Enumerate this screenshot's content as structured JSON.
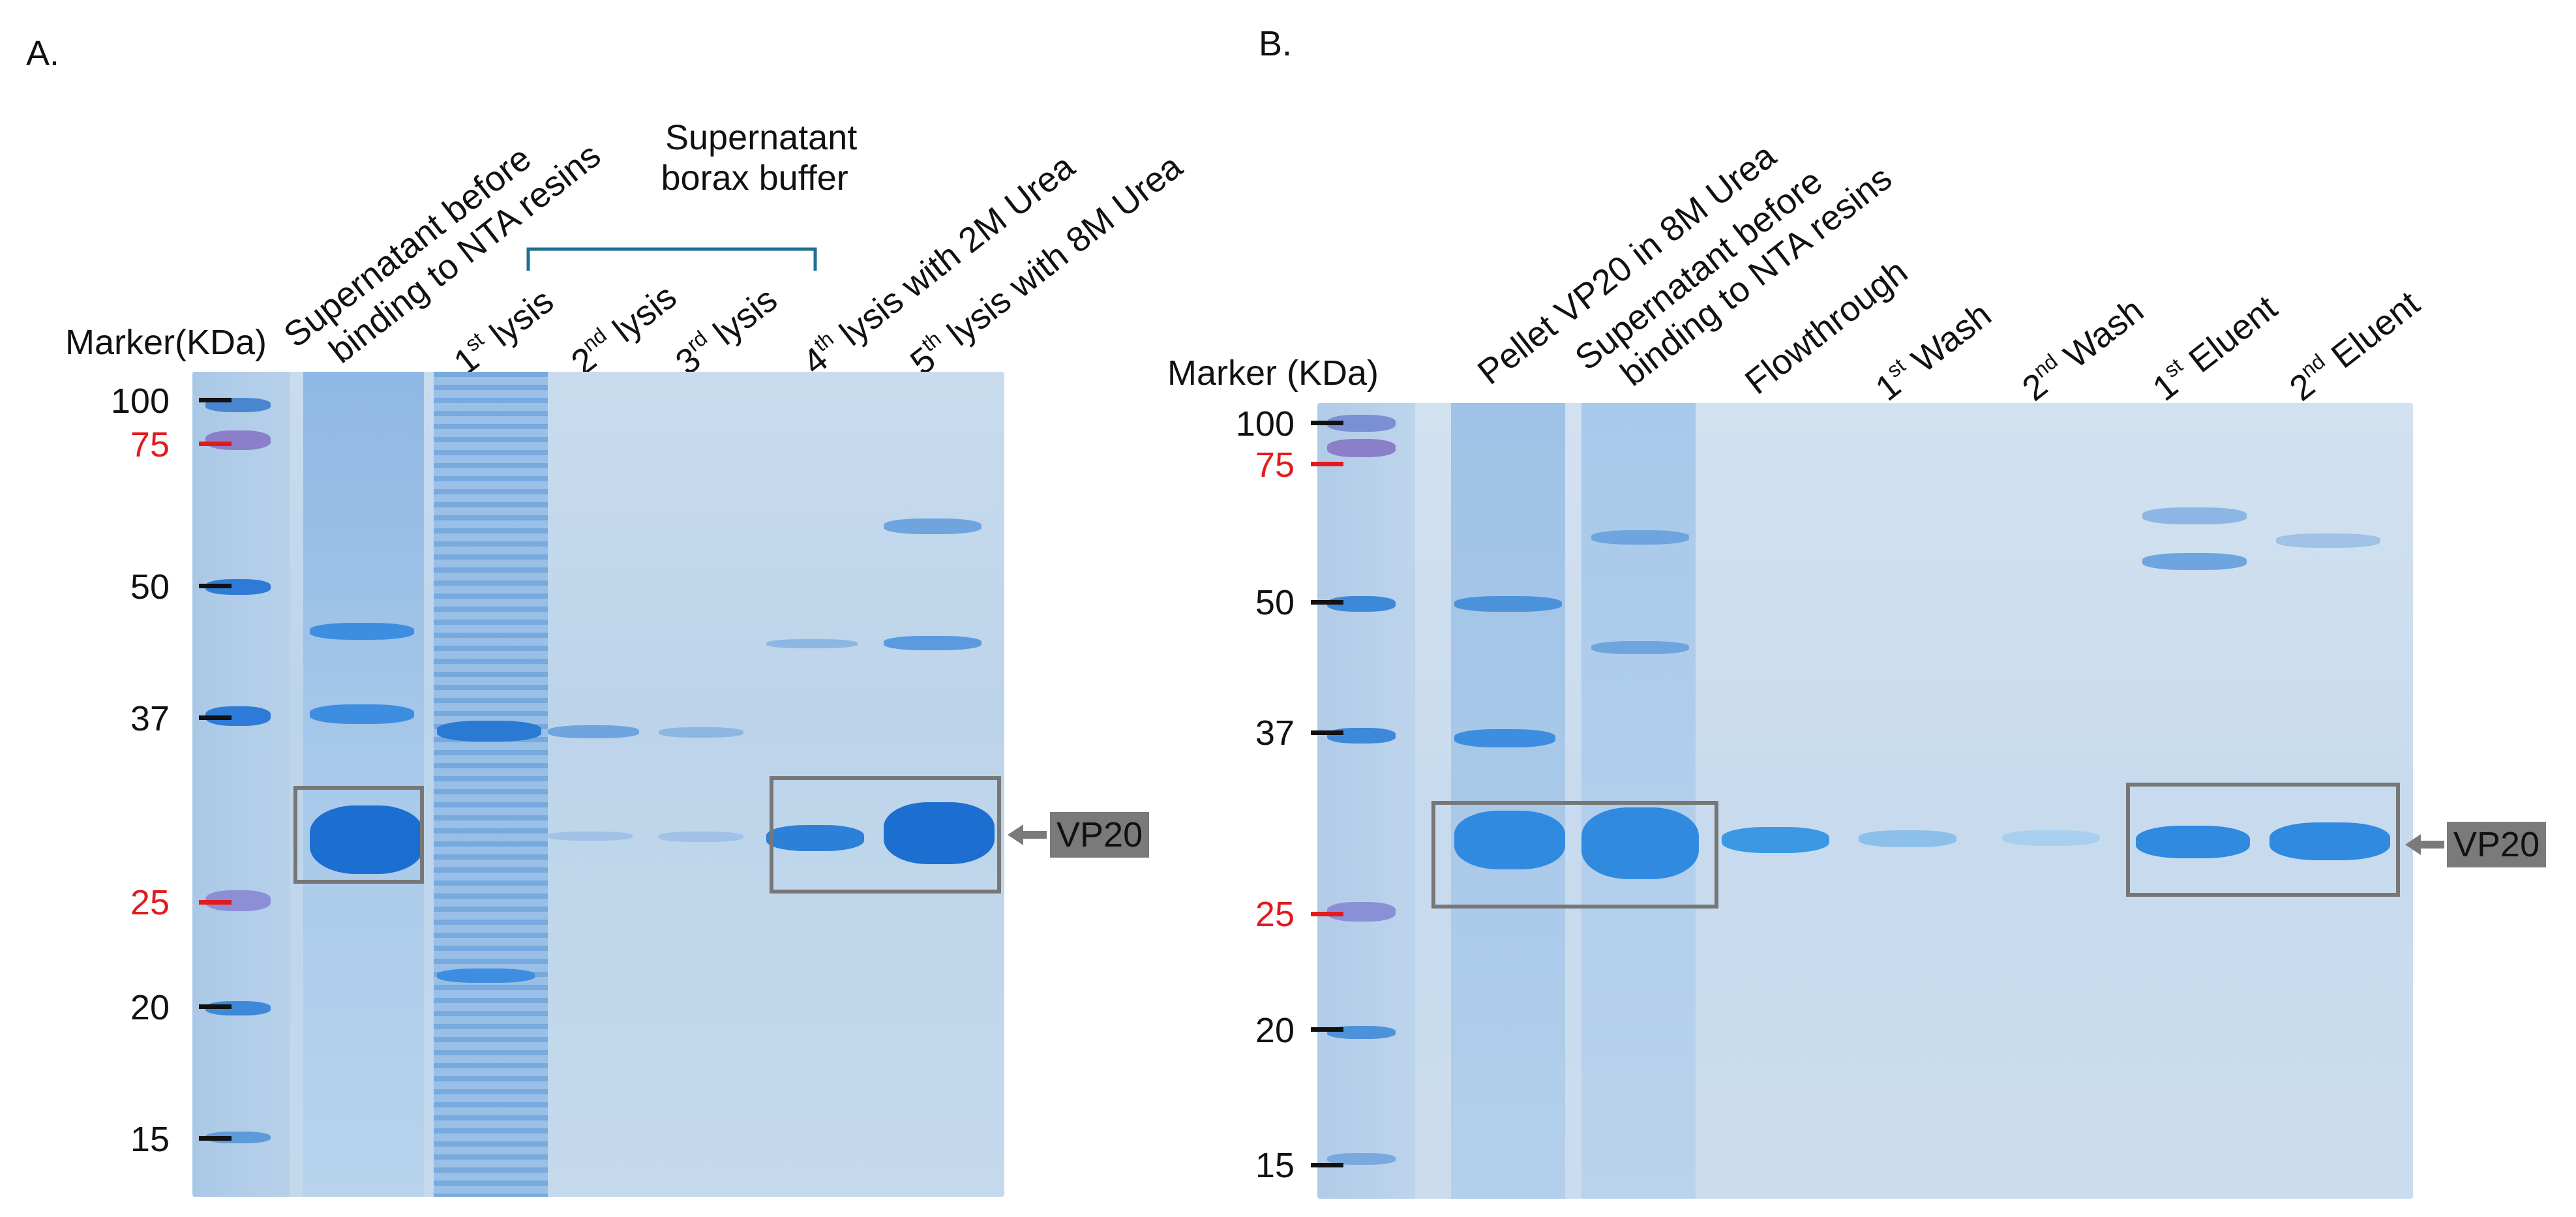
{
  "panelA": {
    "letter": "A.",
    "marker_title": "Marker(KDa)",
    "bracket_label_line1": "Supernatant",
    "bracket_label_line2": "borax buffer",
    "lanes": [
      {
        "pre": "",
        "sup": "",
        "post": "Supernatant before",
        "line2": "binding to NTA resins"
      },
      {
        "pre": "1",
        "sup": "st",
        "post": " lysis",
        "line2": ""
      },
      {
        "pre": "2",
        "sup": "nd",
        "post": " lysis",
        "line2": ""
      },
      {
        "pre": "3",
        "sup": "rd",
        "post": " lysis",
        "line2": ""
      },
      {
        "pre": "4",
        "sup": "th",
        "post": " lysis with 2M Urea",
        "line2": ""
      },
      {
        "pre": "5",
        "sup": "th",
        "post": " lysis with 8M Urea",
        "line2": ""
      }
    ],
    "mw": [
      {
        "v": "100",
        "color": "#111111"
      },
      {
        "v": "75",
        "color": "#e31a1c"
      },
      {
        "v": "50",
        "color": "#111111"
      },
      {
        "v": "37",
        "color": "#111111"
      },
      {
        "v": "25",
        "color": "#e31a1c"
      },
      {
        "v": "20",
        "color": "#111111"
      },
      {
        "v": "15",
        "color": "#111111"
      }
    ],
    "tag": "VP20"
  },
  "panelB": {
    "letter": "B.",
    "marker_title": "Marker (KDa)",
    "lanes": [
      {
        "pre": "",
        "sup": "",
        "post": "Pellet VP20 in 8M Urea",
        "line2": ""
      },
      {
        "pre": "",
        "sup": "",
        "post": "Supernatant before",
        "line2": "binding to NTA resins"
      },
      {
        "pre": "",
        "sup": "",
        "post": "Flowthrough",
        "line2": ""
      },
      {
        "pre": "1",
        "sup": "st",
        "post": " Wash",
        "line2": ""
      },
      {
        "pre": "2",
        "sup": "nd",
        "post": " Wash",
        "line2": ""
      },
      {
        "pre": "1",
        "sup": "st",
        "post": " Eluent",
        "line2": ""
      },
      {
        "pre": "2",
        "sup": "nd",
        "post": " Eluent",
        "line2": ""
      }
    ],
    "mw": [
      {
        "v": "100",
        "color": "#111111"
      },
      {
        "v": "75",
        "color": "#e31a1c"
      },
      {
        "v": "50",
        "color": "#111111"
      },
      {
        "v": "37",
        "color": "#111111"
      },
      {
        "v": "25",
        "color": "#e31a1c"
      },
      {
        "v": "20",
        "color": "#111111"
      },
      {
        "v": "15",
        "color": "#111111"
      }
    ],
    "tag": "VP20"
  },
  "colors": {
    "gel_background": "#bcd4ea",
    "band_dark": "#1c6fd1",
    "band_mid": "#3d8ee0",
    "band_light": "#9fc2e6",
    "box": "#777777",
    "tag_bg": "#7a7a7a",
    "bracket": "#1f6f94"
  }
}
